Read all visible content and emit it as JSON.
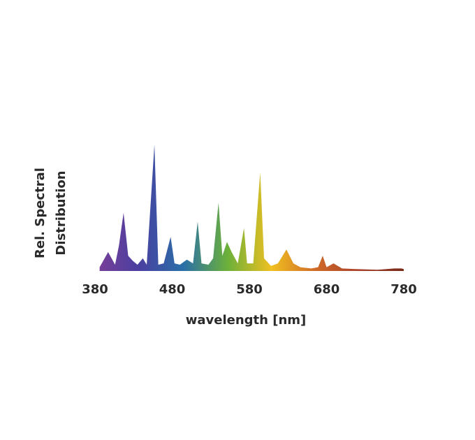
{
  "chart_data": {
    "type": "area",
    "ylabel": [
      "Rel. Spectral",
      "Distribution"
    ],
    "xlabel": "wavelength [nm]",
    "x": [
      386,
      397,
      406,
      411,
      417,
      423,
      429,
      435,
      442,
      447,
      457,
      462,
      469,
      478,
      483,
      490,
      499,
      507,
      513,
      518,
      527,
      533,
      540,
      545,
      551,
      557,
      565,
      573,
      577,
      585,
      594,
      599,
      608,
      617,
      628,
      637,
      646,
      660,
      669,
      675,
      680,
      689,
      700,
      718,
      746,
      768,
      777,
      780
    ],
    "values": [
      0.03,
      0.15,
      0.05,
      0.2,
      0.46,
      0.12,
      0.08,
      0.05,
      0.1,
      0.05,
      1.0,
      0.05,
      0.06,
      0.27,
      0.06,
      0.05,
      0.09,
      0.06,
      0.39,
      0.06,
      0.05,
      0.1,
      0.54,
      0.12,
      0.23,
      0.15,
      0.06,
      0.34,
      0.06,
      0.06,
      0.78,
      0.1,
      0.04,
      0.06,
      0.17,
      0.06,
      0.03,
      0.02,
      0.03,
      0.12,
      0.03,
      0.06,
      0.02,
      0.015,
      0.01,
      0.02,
      0.02,
      0.015
    ],
    "colors": [
      "#7b3f98",
      "#4a3fa0",
      "#2a6fa8",
      "#6bb03a",
      "#f0c020",
      "#d06a28",
      "#a8402a",
      "#7a2a1a"
    ],
    "xlim": [
      380,
      780
    ],
    "ylim": [
      0,
      1
    ],
    "xticks": [
      380,
      480,
      580,
      680,
      780
    ]
  }
}
